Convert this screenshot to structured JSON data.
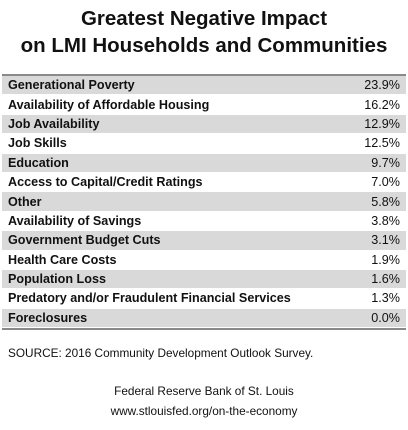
{
  "chart_data": {
    "type": "table",
    "title_lines": [
      "Greatest Negative Impact",
      "on LMI Households and Communities"
    ],
    "rows": [
      {
        "label": "Generational Poverty",
        "value": "23.9%"
      },
      {
        "label": "Availability of Affordable Housing",
        "value": "16.2%"
      },
      {
        "label": "Job Availability",
        "value": "12.9%"
      },
      {
        "label": "Job Skills",
        "value": "12.5%"
      },
      {
        "label": "Education",
        "value": "9.7%"
      },
      {
        "label": "Access to Capital/Credit Ratings",
        "value": "7.0%"
      },
      {
        "label": "Other",
        "value": "5.8%"
      },
      {
        "label": "Availability of Savings",
        "value": "3.8%"
      },
      {
        "label": "Government Budget Cuts",
        "value": "3.1%"
      },
      {
        "label": "Health Care Costs",
        "value": "1.9%"
      },
      {
        "label": "Population Loss",
        "value": "1.6%"
      },
      {
        "label": "Predatory and/or Fraudulent Financial Services",
        "value": "1.3%"
      },
      {
        "label": "Foreclosures",
        "value": "0.0%"
      }
    ],
    "source": "SOURCE:  2016 Community Development Outlook Survey.",
    "footer_lines": [
      "Federal Reserve Bank of St. Louis",
      "www.stlouisfed.org/on-the-economy"
    ]
  },
  "colors": {
    "row_shade": "#d9d9d9",
    "rule": "#8a8a8a",
    "text": "#111111"
  }
}
